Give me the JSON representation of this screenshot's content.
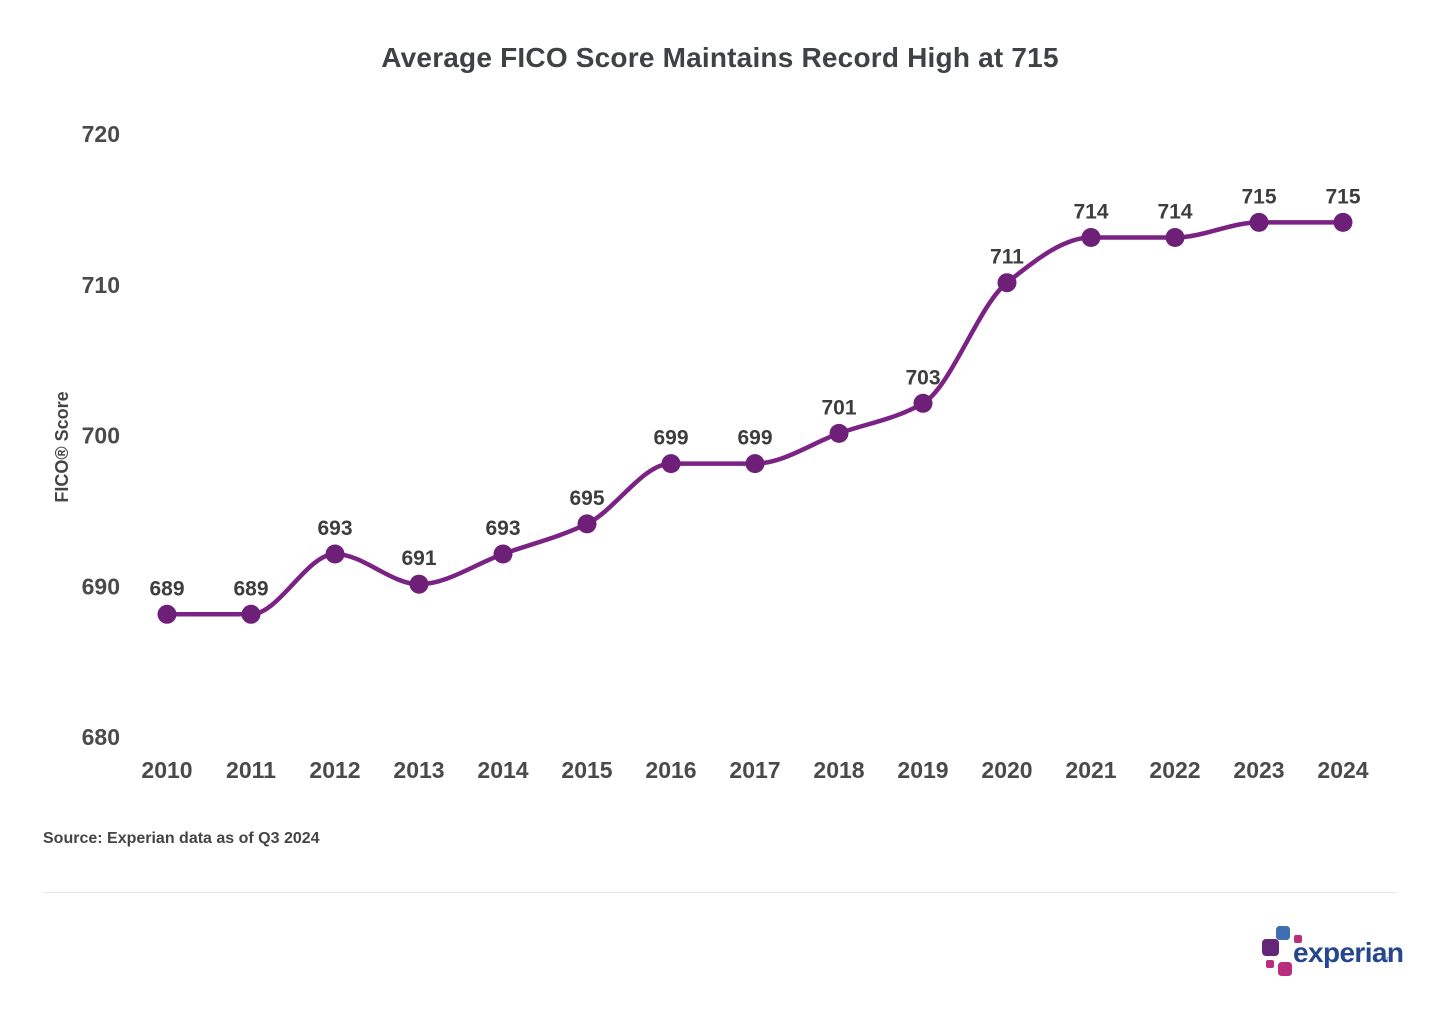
{
  "source": "Source: Experian data as of Q3 2024",
  "logo": {
    "text": "experian",
    "tm": "™",
    "wordmark_color": "#26478d",
    "block_colors": {
      "blue": "#406eb3",
      "purple": "#632678",
      "magenta": "#ba2f7d"
    }
  },
  "chart_data": {
    "type": "line",
    "title": "Average FICO Score Maintains Record High at 715",
    "xlabel": "",
    "ylabel": "FICO® Score",
    "categories": [
      "2010",
      "2011",
      "2012",
      "2013",
      "2014",
      "2015",
      "2016",
      "2017",
      "2018",
      "2019",
      "2020",
      "2021",
      "2022",
      "2023",
      "2024"
    ],
    "values": [
      689,
      689,
      693,
      691,
      693,
      695,
      699,
      699,
      701,
      703,
      711,
      714,
      714,
      715,
      715
    ],
    "yticks": [
      680,
      690,
      700,
      710,
      720
    ],
    "ylim": [
      680,
      720
    ],
    "grid": false,
    "legend": false,
    "line_color": "#7a2384",
    "dot_color": "#6e2079",
    "data_label_color": "#3d3d3d",
    "tick_label_color": "#4a4a4a",
    "axis_title_color": "#454545"
  }
}
